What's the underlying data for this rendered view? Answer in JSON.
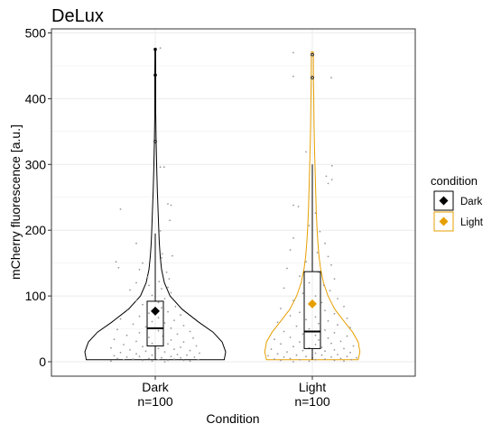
{
  "chart_data": {
    "type": "violin",
    "title": "DeLux",
    "xlabel": "Condition",
    "ylabel": "mCherry fluorescence [a.u.]",
    "ylim": [
      -20,
      510
    ],
    "yticks": [
      0,
      100,
      200,
      300,
      400,
      500
    ],
    "grid": true,
    "legend": {
      "title": "condition",
      "placement": "right",
      "entries": [
        {
          "label": "Dark",
          "color": "#000000"
        },
        {
          "label": "Light",
          "color": "#E69F00"
        }
      ]
    },
    "categories": [
      {
        "name": "Dark",
        "n_label": "n=100"
      },
      {
        "name": "Light",
        "n_label": "n=100"
      }
    ],
    "series": [
      {
        "name": "Dark",
        "color": "#000000",
        "mean": 77,
        "box": {
          "whisker_low": 3,
          "q1": 24,
          "median": 51,
          "q3": 92,
          "whisker_high": 195
        },
        "outliers": [
          335,
          436,
          475
        ],
        "violin": [
          [
            3,
            0.98
          ],
          [
            15,
            1.0
          ],
          [
            30,
            0.95
          ],
          [
            45,
            0.82
          ],
          [
            60,
            0.62
          ],
          [
            80,
            0.38
          ],
          [
            100,
            0.21
          ],
          [
            120,
            0.13
          ],
          [
            140,
            0.09
          ],
          [
            160,
            0.07
          ],
          [
            180,
            0.058
          ],
          [
            200,
            0.05
          ],
          [
            230,
            0.04
          ],
          [
            260,
            0.03
          ],
          [
            290,
            0.022
          ],
          [
            320,
            0.016
          ],
          [
            340,
            0.012
          ],
          [
            360,
            0.009
          ],
          [
            380,
            0.007
          ],
          [
            400,
            0.006
          ],
          [
            420,
            0.006
          ],
          [
            440,
            0.006
          ],
          [
            460,
            0.005
          ],
          [
            476,
            0.005
          ]
        ],
        "points": [
          [
            477,
            0.08
          ],
          [
            296,
            0.08
          ],
          [
            296,
            0.14
          ],
          [
            240,
            0.2
          ],
          [
            238,
            0.25
          ],
          [
            232,
            -0.55
          ],
          [
            215,
            0.23
          ],
          [
            199,
            0.08
          ],
          [
            180,
            -0.3
          ],
          [
            164,
            0.11
          ],
          [
            161,
            0.27
          ],
          [
            158,
            0.1
          ],
          [
            152,
            -0.62
          ],
          [
            150,
            -0.2
          ],
          [
            143,
            -0.58
          ],
          [
            140,
            -0.25
          ],
          [
            136,
            0.18
          ],
          [
            129,
            -0.12
          ],
          [
            126,
            0.22
          ],
          [
            122,
            0.06
          ],
          [
            120,
            -0.3
          ],
          [
            116,
            -0.1
          ],
          [
            113,
            0.2
          ],
          [
            111,
            0.1
          ],
          [
            109,
            -0.4
          ],
          [
            105,
            0.25
          ],
          [
            101,
            -0.05
          ],
          [
            96,
            0.15
          ],
          [
            93,
            -0.3
          ],
          [
            90,
            0.05
          ],
          [
            87,
            -0.2
          ],
          [
            84,
            0.32
          ],
          [
            82,
            0.1
          ],
          [
            79,
            -0.45
          ],
          [
            76,
            0.2
          ],
          [
            74,
            -0.1
          ],
          [
            71,
            0.4
          ],
          [
            69,
            -0.25
          ],
          [
            67,
            0.05
          ],
          [
            65,
            -0.55
          ],
          [
            63,
            0.3
          ],
          [
            61,
            -0.05
          ],
          [
            59,
            0.15
          ],
          [
            57,
            -0.35
          ],
          [
            55,
            0.45
          ],
          [
            53,
            -0.15
          ],
          [
            51,
            0.25
          ],
          [
            49,
            -0.6
          ],
          [
            47,
            0.05
          ],
          [
            46,
            0.55
          ],
          [
            44,
            -0.25
          ],
          [
            42,
            0.35
          ],
          [
            40,
            -0.45
          ],
          [
            39,
            0.12
          ],
          [
            37,
            -0.1
          ],
          [
            36,
            0.6
          ],
          [
            34,
            -0.65
          ],
          [
            33,
            0.25
          ],
          [
            31,
            -0.3
          ],
          [
            30,
            0.45
          ],
          [
            28,
            -0.05
          ],
          [
            27,
            0.2
          ],
          [
            26,
            -0.5
          ],
          [
            24,
            0.65
          ],
          [
            23,
            -0.2
          ],
          [
            22,
            0.4
          ],
          [
            21,
            -0.7
          ],
          [
            20,
            0.05
          ],
          [
            19,
            0.3
          ],
          [
            18,
            -0.4
          ],
          [
            17,
            0.55
          ],
          [
            16,
            -0.15
          ],
          [
            15,
            0.15
          ],
          [
            14,
            -0.55
          ],
          [
            13,
            0.7
          ],
          [
            12,
            -0.3
          ],
          [
            11,
            0.35
          ],
          [
            10,
            -0.05
          ],
          [
            10,
            0.5
          ],
          [
            9,
            -0.65
          ],
          [
            8,
            0.25
          ],
          [
            8,
            -0.25
          ],
          [
            7,
            0.62
          ],
          [
            7,
            -0.45
          ],
          [
            6,
            0.1
          ],
          [
            6,
            0.4
          ],
          [
            5,
            -0.1
          ],
          [
            5,
            -0.6
          ],
          [
            4,
            0.3
          ],
          [
            4,
            -0.35
          ],
          [
            3,
            0.68
          ],
          [
            3,
            0.05
          ],
          [
            3,
            -0.5
          ],
          [
            2,
            0.2
          ],
          [
            2,
            -0.2
          ],
          [
            2,
            0.45
          ],
          [
            1,
            -0.7
          ],
          [
            1,
            0.55
          ],
          [
            1,
            -0.05
          ],
          [
            0,
            0.15
          ]
        ]
      },
      {
        "name": "Light",
        "color": "#E69F00",
        "mean": 88,
        "box": {
          "whisker_low": 3,
          "q1": 20,
          "median": 46,
          "q3": 137,
          "whisker_high": 300
        },
        "outliers": [
          432,
          467
        ],
        "violin": [
          [
            3,
            0.82
          ],
          [
            15,
            0.85
          ],
          [
            30,
            0.82
          ],
          [
            45,
            0.72
          ],
          [
            60,
            0.58
          ],
          [
            80,
            0.4
          ],
          [
            100,
            0.28
          ],
          [
            120,
            0.2
          ],
          [
            140,
            0.15
          ],
          [
            160,
            0.12
          ],
          [
            180,
            0.1
          ],
          [
            200,
            0.085
          ],
          [
            230,
            0.07
          ],
          [
            260,
            0.06
          ],
          [
            290,
            0.05
          ],
          [
            320,
            0.04
          ],
          [
            360,
            0.03
          ],
          [
            400,
            0.025
          ],
          [
            430,
            0.02
          ],
          [
            450,
            0.02
          ],
          [
            471,
            0.018
          ]
        ],
        "points": [
          [
            470,
            -0.3
          ],
          [
            434,
            -0.3
          ],
          [
            432,
            0.3
          ],
          [
            319,
            -0.1
          ],
          [
            298,
            0.31
          ],
          [
            282,
            0.22
          ],
          [
            277,
            0.31
          ],
          [
            271,
            0.25
          ],
          [
            238,
            -0.3
          ],
          [
            236,
            -0.22
          ],
          [
            226,
            0.05
          ],
          [
            207,
            -0.05
          ],
          [
            198,
            0.12
          ],
          [
            188,
            -0.3
          ],
          [
            180,
            0.2
          ],
          [
            170,
            -0.35
          ],
          [
            166,
            0.08
          ],
          [
            160,
            0.25
          ],
          [
            152,
            -0.1
          ],
          [
            147,
            0.3
          ],
          [
            142,
            -0.4
          ],
          [
            136,
            0.1
          ],
          [
            130,
            -0.2
          ],
          [
            126,
            0.35
          ],
          [
            120,
            -0.05
          ],
          [
            116,
            0.18
          ],
          [
            112,
            -0.45
          ],
          [
            108,
            0.28
          ],
          [
            104,
            -0.15
          ],
          [
            100,
            0.05
          ],
          [
            96,
            0.4
          ],
          [
            93,
            -0.3
          ],
          [
            90,
            0.15
          ],
          [
            87,
            -0.05
          ],
          [
            84,
            0.5
          ],
          [
            81,
            -0.5
          ],
          [
            78,
            0.2
          ],
          [
            75,
            -0.2
          ],
          [
            73,
            0.35
          ],
          [
            70,
            -0.35
          ],
          [
            68,
            0.05
          ],
          [
            66,
            0.55
          ],
          [
            64,
            -0.1
          ],
          [
            62,
            0.25
          ],
          [
            60,
            -0.55
          ],
          [
            58,
            0.1
          ],
          [
            56,
            0.4
          ],
          [
            54,
            -0.25
          ],
          [
            52,
            0.6
          ],
          [
            50,
            -0.05
          ],
          [
            48,
            0.2
          ],
          [
            46,
            -0.45
          ],
          [
            44,
            0.35
          ],
          [
            42,
            -0.15
          ],
          [
            40,
            0.05
          ],
          [
            39,
            0.55
          ],
          [
            37,
            -0.35
          ],
          [
            36,
            0.25
          ],
          [
            34,
            -0.6
          ],
          [
            33,
            0.1
          ],
          [
            31,
            0.45
          ],
          [
            30,
            -0.2
          ],
          [
            28,
            0.3
          ],
          [
            27,
            -0.5
          ],
          [
            26,
            0.05
          ],
          [
            24,
            0.65
          ],
          [
            23,
            -0.3
          ],
          [
            22,
            0.15
          ],
          [
            21,
            -0.05
          ],
          [
            20,
            0.5
          ],
          [
            19,
            -0.65
          ],
          [
            18,
            0.35
          ],
          [
            17,
            -0.15
          ],
          [
            16,
            0.2
          ],
          [
            15,
            -0.4
          ],
          [
            14,
            0.6
          ],
          [
            13,
            0.05
          ],
          [
            12,
            -0.55
          ],
          [
            11,
            0.4
          ],
          [
            10,
            -0.25
          ],
          [
            10,
            0.15
          ],
          [
            9,
            -0.7
          ],
          [
            8,
            0.55
          ],
          [
            8,
            -0.1
          ],
          [
            7,
            0.3
          ],
          [
            7,
            -0.45
          ],
          [
            6,
            0.7
          ],
          [
            6,
            0.0
          ],
          [
            5,
            -0.35
          ],
          [
            5,
            0.45
          ],
          [
            4,
            -0.6
          ],
          [
            4,
            0.2
          ],
          [
            3,
            -0.2
          ],
          [
            3,
            0.62
          ],
          [
            3,
            0.05
          ],
          [
            2,
            -0.5
          ],
          [
            2,
            0.35
          ],
          [
            1,
            -0.05
          ],
          [
            1,
            0.5
          ],
          [
            0,
            -0.3
          ]
        ]
      }
    ]
  }
}
